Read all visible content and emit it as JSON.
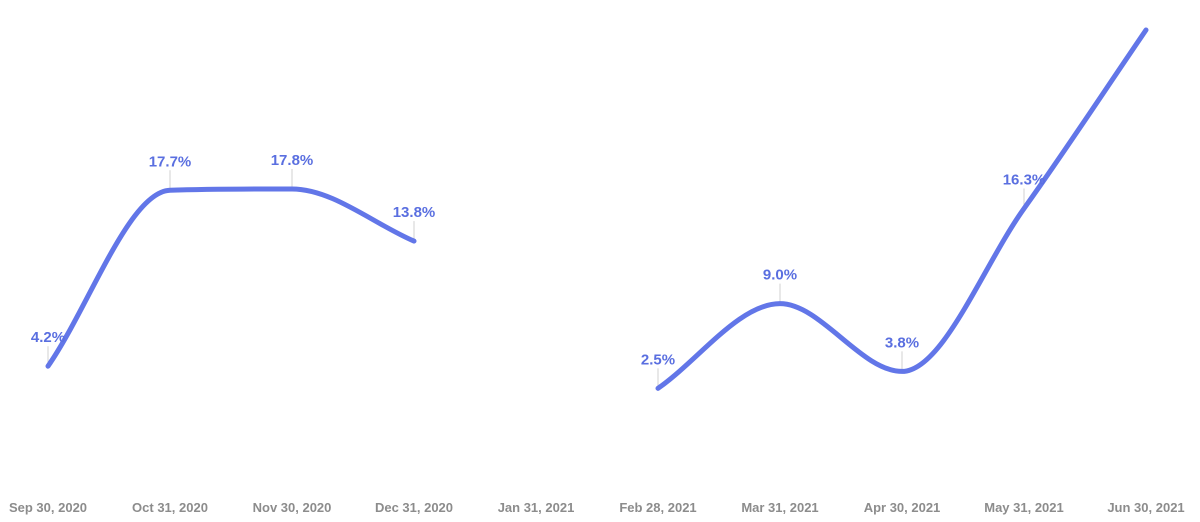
{
  "chart_data": {
    "type": "line",
    "title": "",
    "xlabel": "",
    "ylabel": "",
    "grid": false,
    "legend": false,
    "color": "#6276e8",
    "label_color": "#5a6fe0",
    "tick_color": "#8c8c8c",
    "leader_color": "#d0d0d0",
    "categories": [
      "Sep 30, 2020",
      "Oct 31, 2020",
      "Nov 30, 2020",
      "Dec 31, 2020",
      "Jan 31, 2021",
      "Feb 28, 2021",
      "Mar 31, 2021",
      "Apr 30, 2021",
      "May 31, 2021",
      "Jun 30, 2021"
    ],
    "series": [
      {
        "values": [
          4.2,
          17.7,
          17.8,
          13.8,
          null,
          2.5,
          9.0,
          3.8,
          16.3,
          30.0
        ],
        "labels": [
          "4.2%",
          "17.7%",
          "17.8%",
          "13.8%",
          "",
          "2.5%",
          "9.0%",
          "3.8%",
          "16.3%",
          ""
        ]
      }
    ],
    "ylim": [
      -2,
      30
    ]
  }
}
